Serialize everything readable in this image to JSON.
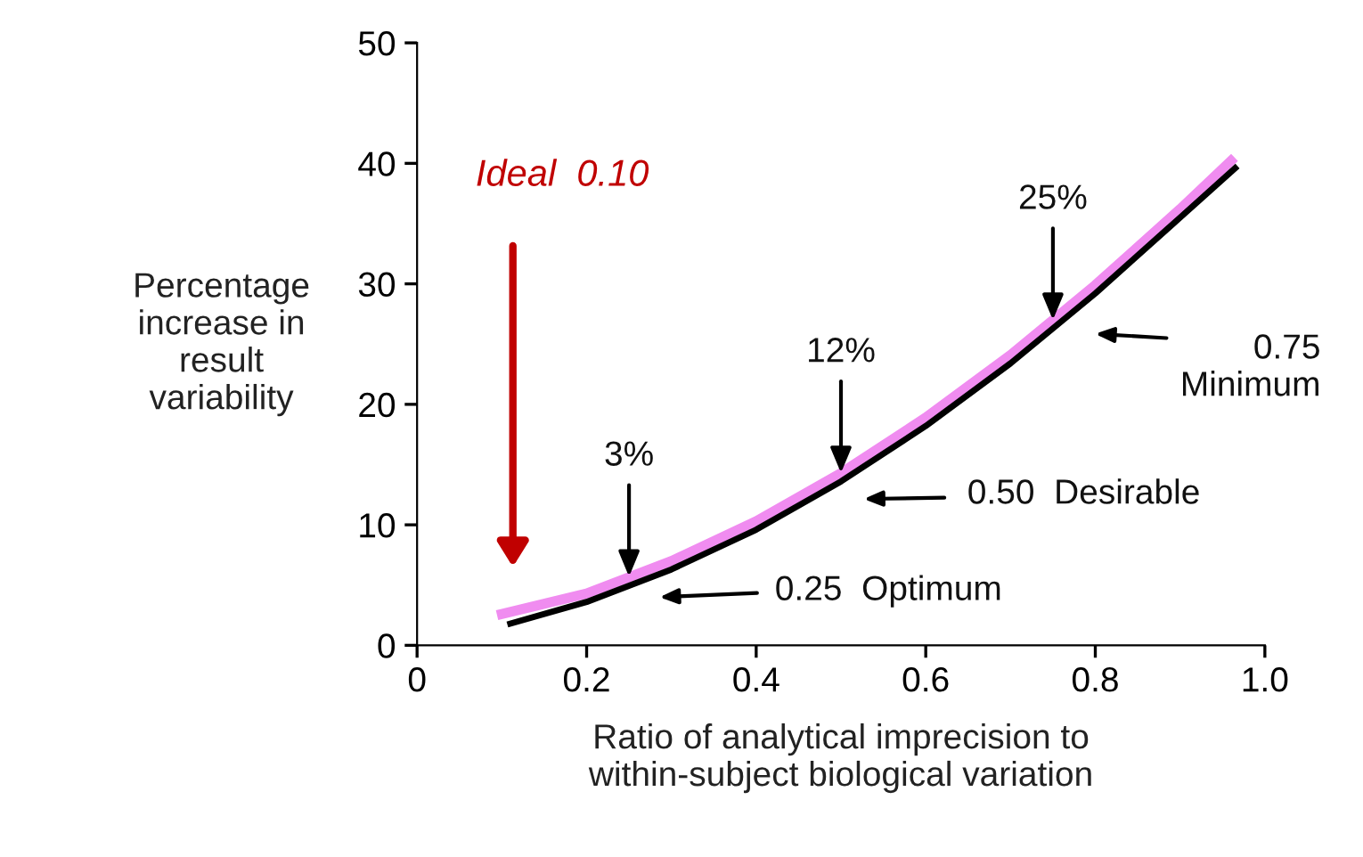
{
  "chart_data": {
    "type": "line",
    "xlabel": "Ratio of analytical imprecision to\nwithin-subject biological variation",
    "ylabel": "Percentage\nincrease in\nresult\nvariability",
    "series": [
      {
        "color": "#f08cf0",
        "x": [
          0.1,
          0.2,
          0.3,
          0.4,
          0.5,
          0.6,
          0.7,
          0.8,
          0.9,
          0.96
        ],
        "values": [
          2.6,
          4.3,
          7.0,
          10.3,
          14.3,
          18.9,
          24.1,
          29.9,
          36.2,
          40.2
        ]
      },
      {
        "color": "#000000",
        "x": [
          0.11,
          0.2,
          0.3,
          0.4,
          0.5,
          0.6,
          0.7,
          0.8,
          0.9,
          0.965
        ],
        "values": [
          1.8,
          3.6,
          6.3,
          9.6,
          13.6,
          18.2,
          23.4,
          29.2,
          35.5,
          39.6
        ]
      }
    ],
    "annotations": [
      "Ideal  0.10",
      {
        "text": "3%",
        "x": 0.25,
        "y": 5.7
      },
      {
        "text": "12%",
        "x": 0.5,
        "y": 14.3
      },
      {
        "text": "25%",
        "x": 0.75,
        "y": 27.0
      },
      "0.25  Optimum",
      "0.50  Desirable",
      "0.75\nMinimum"
    ],
    "xlim": [
      0,
      1.0
    ],
    "ylim": [
      0,
      50
    ],
    "xticks": [
      0,
      0.2,
      0.4,
      0.6,
      0.8,
      {
        "value": 1.0,
        "label": "1.0"
      }
    ],
    "yticks": [
      0,
      10,
      20,
      30,
      40,
      50
    ],
    "grid": false,
    "legend": false,
    "marker": "none",
    "line_style": "solid"
  }
}
